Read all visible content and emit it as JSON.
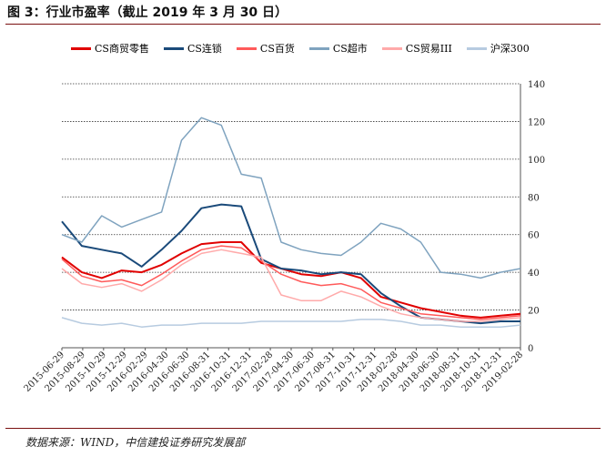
{
  "header": {
    "title": "图 3：行业市盈率（截止 2019 年 3 月 30 日）"
  },
  "footer": {
    "source": "数据来源：WIND，中信建投证券研究发展部"
  },
  "chart_data": {
    "type": "line",
    "x_tick_labels": [
      "2015-06-29",
      "2015-08-29",
      "2015-10-29",
      "2015-12-29",
      "2016-02-29",
      "2016-04-30",
      "2016-06-30",
      "2016-08-31",
      "2016-10-31",
      "2016-12-31",
      "2017-02-28",
      "2017-04-30",
      "2017-06-30",
      "2017-08-31",
      "2017-10-31",
      "2017-12-31",
      "2018-02-28",
      "2018-04-30",
      "2018-06-30",
      "2018-08-31",
      "2018-10-31",
      "2018-12-31",
      "2019-02-28"
    ],
    "y_ticks": [
      0,
      20,
      40,
      60,
      80,
      100,
      120,
      140
    ],
    "ylim": [
      0,
      140
    ],
    "grid": "horizontal-dashed",
    "y_axis_side": "right",
    "legend_position": "top",
    "series": [
      {
        "name": "CS商贸零售",
        "color": "#e00000",
        "width": 2.0,
        "values": [
          48,
          40,
          37,
          41,
          40,
          44,
          50,
          55,
          56,
          56,
          45,
          42,
          39,
          38,
          40,
          37,
          27,
          24,
          21,
          19,
          17,
          16,
          17,
          18
        ]
      },
      {
        "name": "CS连锁",
        "color": "#1a4a7a",
        "width": 2.0,
        "values": [
          67,
          54,
          52,
          50,
          43,
          52,
          62,
          74,
          76,
          75,
          47,
          42,
          41,
          39,
          40,
          39,
          29,
          22,
          16,
          15,
          14,
          13,
          14,
          14
        ]
      },
      {
        "name": "CS百货",
        "color": "#ff5a5a",
        "width": 1.5,
        "values": [
          47,
          38,
          35,
          36,
          33,
          39,
          46,
          52,
          54,
          53,
          46,
          39,
          35,
          33,
          34,
          31,
          24,
          21,
          18,
          17,
          16,
          15,
          16,
          17
        ]
      },
      {
        "name": "CS超市",
        "color": "#7fa3bf",
        "width": 1.5,
        "values": [
          60,
          56,
          70,
          64,
          68,
          72,
          110,
          122,
          118,
          92,
          90,
          56,
          52,
          50,
          49,
          56,
          66,
          63,
          56,
          40,
          39,
          37,
          40,
          42
        ]
      },
      {
        "name": "CS贸易III",
        "color": "#ffaaaa",
        "width": 1.5,
        "values": [
          42,
          34,
          32,
          34,
          30,
          36,
          44,
          50,
          52,
          50,
          48,
          28,
          25,
          25,
          30,
          27,
          22,
          18,
          16,
          15,
          14,
          14,
          15,
          16
        ]
      },
      {
        "name": "沪深300",
        "color": "#b7cbe0",
        "width": 1.5,
        "values": [
          16,
          13,
          12,
          13,
          11,
          12,
          12,
          13,
          13,
          13,
          14,
          14,
          14,
          14,
          14,
          15,
          15,
          14,
          12,
          12,
          11,
          11,
          11,
          12
        ]
      }
    ]
  }
}
